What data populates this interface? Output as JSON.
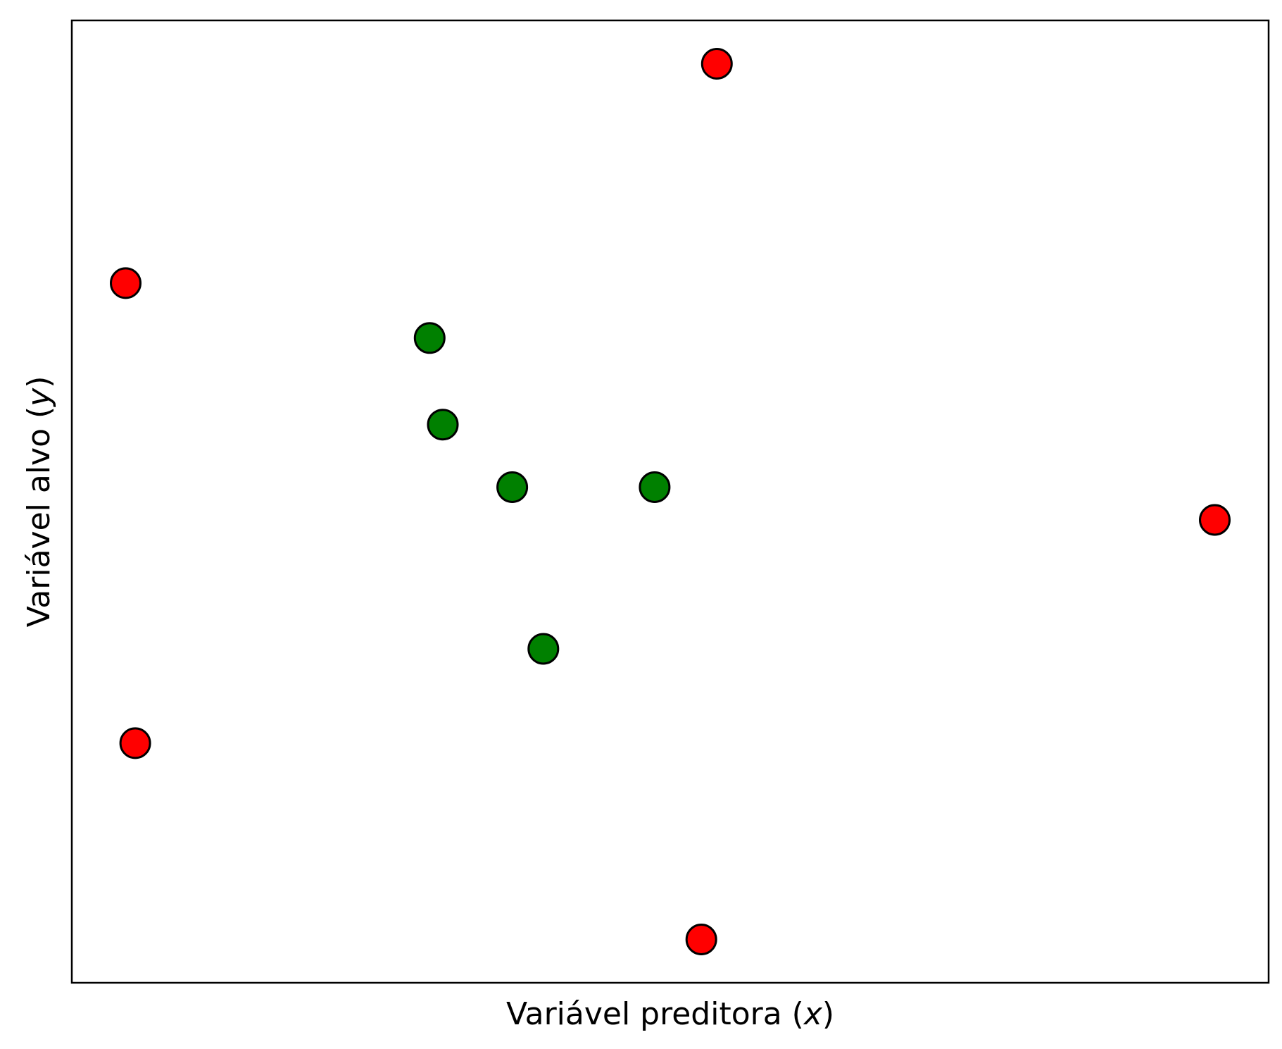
{
  "chart_data": {
    "type": "scatter",
    "title": "",
    "xlabel": "",
    "ylabel": "",
    "xlabel_parts": {
      "pre": "Variável preditora (",
      "var": "x",
      "post": ")"
    },
    "ylabel_parts": {
      "pre": "Variável alvo (",
      "var": "y",
      "post": ")"
    },
    "xlim": [
      0,
      1
    ],
    "ylim": [
      0,
      1
    ],
    "ticks": false,
    "grid": false,
    "legend": "none",
    "series": [
      {
        "color": "#ff0000",
        "points": [
          {
            "x": 0.539,
            "y": 0.955
          },
          {
            "x": 0.045,
            "y": 0.727
          },
          {
            "x": 0.955,
            "y": 0.481
          },
          {
            "x": 0.053,
            "y": 0.249
          },
          {
            "x": 0.526,
            "y": 0.045
          }
        ]
      },
      {
        "color": "#008000",
        "points": [
          {
            "x": 0.299,
            "y": 0.67
          },
          {
            "x": 0.31,
            "y": 0.58
          },
          {
            "x": 0.368,
            "y": 0.515
          },
          {
            "x": 0.487,
            "y": 0.515
          },
          {
            "x": 0.394,
            "y": 0.347
          }
        ]
      }
    ]
  }
}
